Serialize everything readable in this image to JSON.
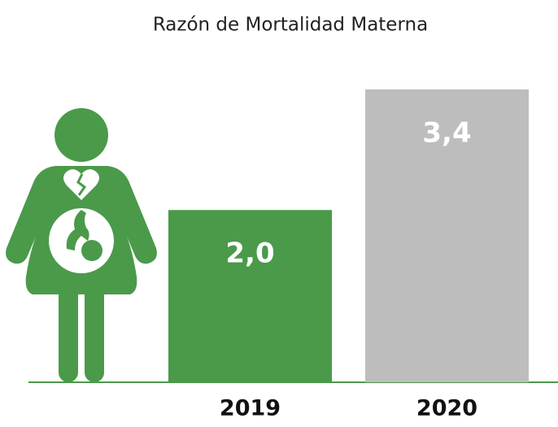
{
  "chart_data": {
    "type": "bar",
    "title": "Razón de Mortalidad Materna",
    "categories": [
      "2019",
      "2020"
    ],
    "values": [
      2.0,
      3.4
    ],
    "value_labels": [
      "2,0",
      "3,4"
    ],
    "colors": [
      "#4a9a4a",
      "#bdbdbd"
    ],
    "ylim": [
      0,
      3.4
    ]
  }
}
